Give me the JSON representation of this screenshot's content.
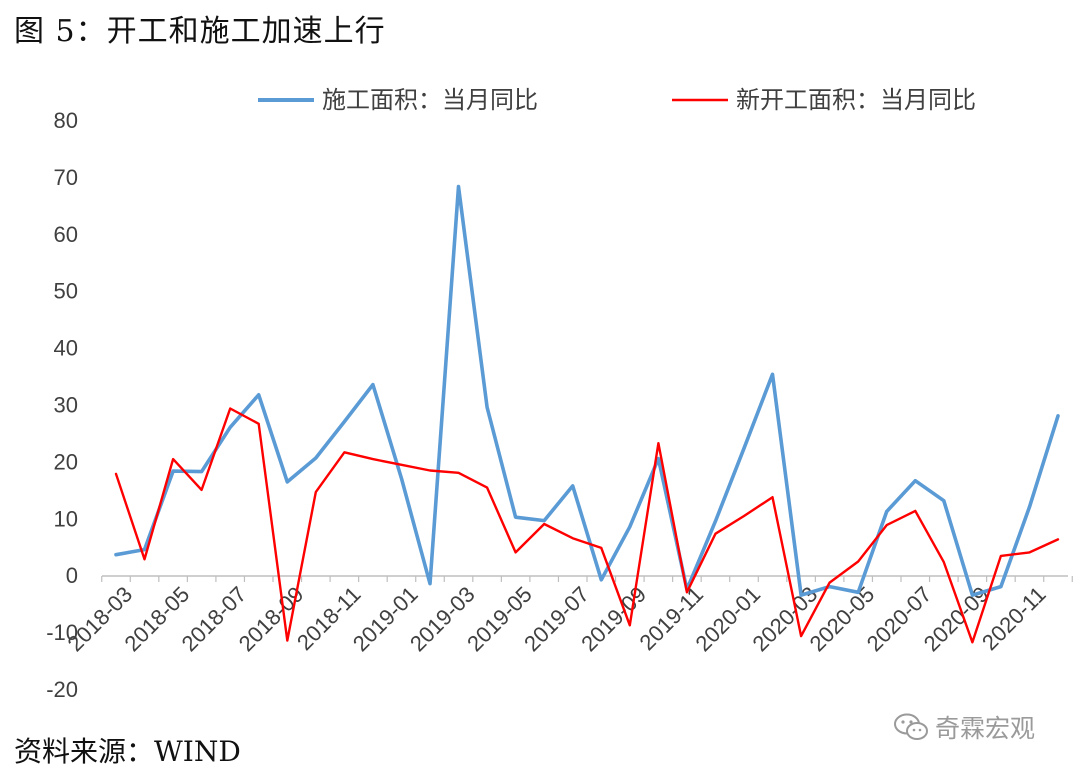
{
  "figure": {
    "title": "图 5：开工和施工加速上行",
    "source": "资料来源：WIND",
    "watermark": "奇霖宏观"
  },
  "chart_data": {
    "type": "line",
    "ylim": [
      -20,
      80
    ],
    "yticks": [
      -20,
      -10,
      0,
      10,
      20,
      30,
      40,
      50,
      60,
      70,
      80
    ],
    "x": [
      "2018-03",
      "2018-04",
      "2018-05",
      "2018-06",
      "2018-07",
      "2018-08",
      "2018-09",
      "2018-10",
      "2018-11",
      "2018-12",
      "2019-01",
      "2019-02",
      "2019-03",
      "2019-04",
      "2019-05",
      "2019-06",
      "2019-07",
      "2019-08",
      "2019-09",
      "2019-10",
      "2019-11",
      "2019-12",
      "2020-01",
      "2020-02",
      "2020-03",
      "2020-04",
      "2020-05",
      "2020-06",
      "2020-07",
      "2020-08",
      "2020-09",
      "2020-10",
      "2020-11",
      "2020-12"
    ],
    "xtick_labels": [
      "2018-03",
      "2018-05",
      "2018-07",
      "2018-09",
      "2018-11",
      "2019-01",
      "2019-03",
      "2019-05",
      "2019-07",
      "2019-09",
      "2019-11",
      "2020-01",
      "2020-03",
      "2020-05",
      "2020-07",
      "2020-09",
      "2020-11"
    ],
    "grid": false,
    "legend_position": "top",
    "series": [
      {
        "name": "施工面积：当月同比",
        "color": "#5b9bd5",
        "values": [
          3.6,
          4.5,
          18.3,
          18.2,
          26.0,
          31.7,
          16.4,
          20.6,
          27.0,
          33.5,
          17.0,
          -1.5,
          68.3,
          29.5,
          10.2,
          9.6,
          15.7,
          -0.8,
          8.5,
          20.5,
          -2.5,
          9.5,
          22.3,
          35.3,
          -3.5,
          -2.0,
          -3.0,
          11.2,
          16.6,
          13.1,
          -3.5,
          -2.0,
          12.0,
          28.0
        ]
      },
      {
        "name": "新开工面积：当月同比",
        "color": "#ff0000",
        "values": [
          17.8,
          2.8,
          20.4,
          15.0,
          29.3,
          26.6,
          -11.5,
          14.6,
          21.6,
          20.4,
          19.4,
          18.4,
          18.0,
          15.4,
          4.0,
          9.0,
          6.5,
          4.8,
          -8.8,
          23.2,
          -3.0,
          7.3,
          10.4,
          13.7,
          -10.7,
          -1.3,
          2.4,
          8.8,
          11.3,
          2.3,
          -11.8,
          3.4,
          4.0,
          6.3
        ]
      }
    ]
  }
}
